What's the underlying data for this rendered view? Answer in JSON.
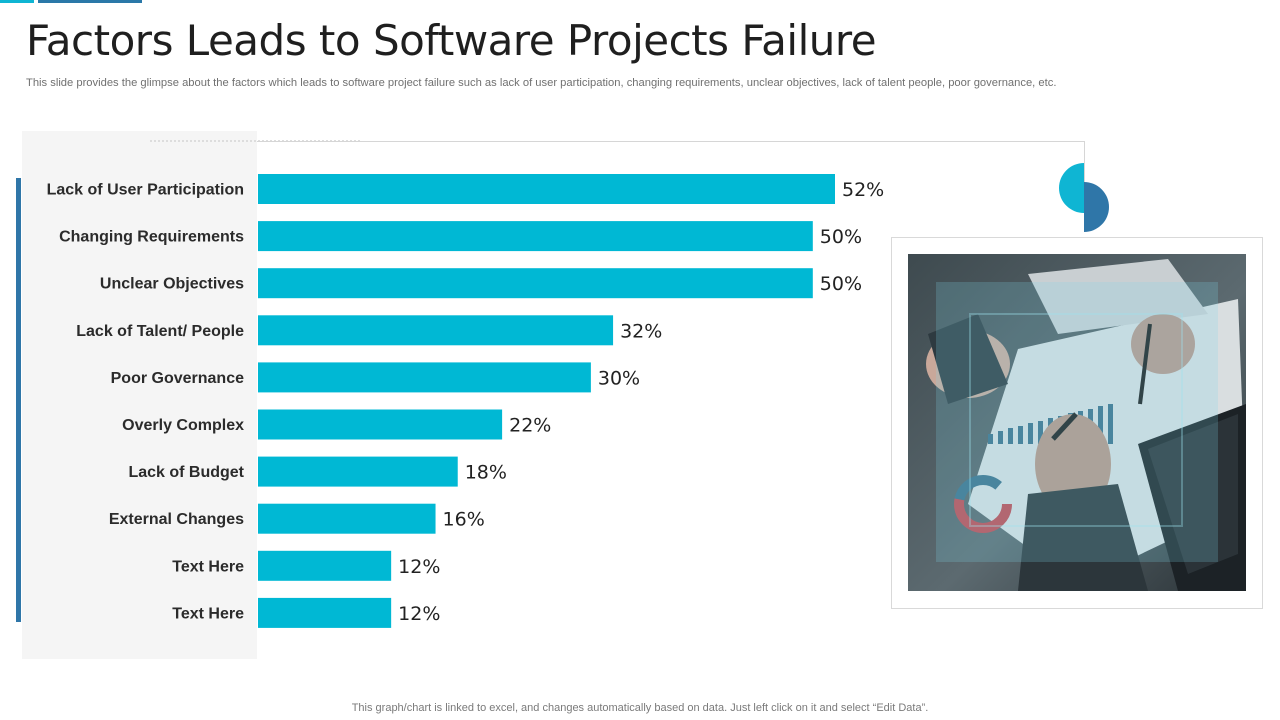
{
  "page": {
    "title": "Factors Leads to Software Projects Failure",
    "subtitle": "This slide provides the glimpse about the factors which leads to software project failure such as lack of user participation, changing requirements, unclear objectives, lack of talent people, poor governance, etc.",
    "footnote": "This graph/chart is linked to excel,  and changes automatically based on data. Just left click on it and select “Edit Data”."
  },
  "colors": {
    "bar": "#00b8d4",
    "accent_dark": "#2f76a8",
    "label_text": "#2b2b2b",
    "value_text": "#222222"
  },
  "chart_data": {
    "type": "bar",
    "orientation": "horizontal",
    "title": "",
    "xlabel": "",
    "ylabel": "",
    "xlim": [
      0,
      52
    ],
    "grid": false,
    "legend": "none",
    "value_suffix": "%",
    "categories": [
      "Lack of User Participation",
      "Changing Requirements",
      "Unclear Objectives",
      "Lack of Talent/ People",
      "Poor Governance",
      "Overly Complex",
      "Lack of Budget",
      "External Changes",
      "Text Here",
      "Text Here"
    ],
    "values": [
      52,
      50,
      50,
      32,
      30,
      22,
      18,
      16,
      12,
      12
    ]
  }
}
